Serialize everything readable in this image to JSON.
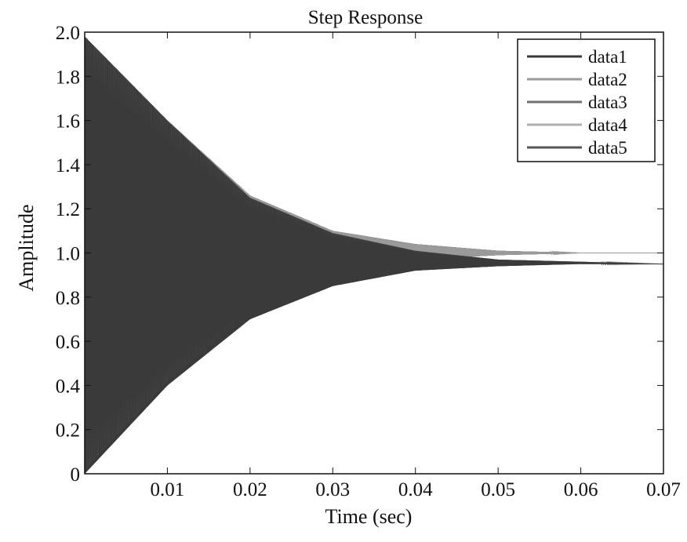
{
  "chart_data": {
    "type": "line",
    "title": "Step Response",
    "xlabel": "Time (sec)",
    "ylabel": "Amplitude",
    "xlim": [
      0,
      0.07
    ],
    "ylim": [
      0,
      2.0
    ],
    "x_ticks": [
      0.01,
      0.02,
      0.03,
      0.04,
      0.05,
      0.06,
      0.07
    ],
    "x_tick_labels": [
      "0.01",
      "0.02",
      "0.03",
      "0.04",
      "0.05",
      "0.06",
      "0.07"
    ],
    "y_ticks": [
      0,
      0.2,
      0.4,
      0.6,
      0.8,
      1.0,
      1.2,
      1.4,
      1.6,
      1.8,
      2.0
    ],
    "y_tick_labels": [
      "0",
      "0.2",
      "0.4",
      "0.6",
      "0.8",
      "1.0",
      "1.2",
      "1.4",
      "1.6",
      "1.8",
      "2.0"
    ],
    "grid": false,
    "legend_position": "top-right",
    "series": [
      {
        "name": "data1",
        "color": "#3a3a3a",
        "final_value": 0.95,
        "x": [
          0,
          0.01,
          0.02,
          0.03,
          0.04,
          0.05,
          0.06,
          0.07
        ],
        "y_upper": [
          1.98,
          1.6,
          1.25,
          1.09,
          1.01,
          0.97,
          0.96,
          0.95
        ],
        "y_lower": [
          0.0,
          0.4,
          0.7,
          0.85,
          0.92,
          0.94,
          0.95,
          0.95
        ]
      },
      {
        "name": "data2",
        "color": "#9a9a9a",
        "final_value": 1.0,
        "x": [
          0,
          0.01,
          0.02,
          0.03,
          0.04,
          0.05,
          0.06,
          0.07
        ],
        "y_upper": [
          1.98,
          1.6,
          1.26,
          1.1,
          1.04,
          1.01,
          1.0,
          1.0
        ],
        "y_lower": [
          0.02,
          0.42,
          0.74,
          0.9,
          0.97,
          0.99,
          1.0,
          1.0
        ]
      },
      {
        "name": "data3",
        "color": "#707070",
        "final_value": 1.0,
        "x": [
          0,
          0.01,
          0.02,
          0.03,
          0.04,
          0.05,
          0.06,
          0.07
        ],
        "y_upper": [
          1.98,
          1.6,
          1.26,
          1.1,
          1.04,
          1.01,
          1.0,
          1.0
        ],
        "y_lower": [
          0.02,
          0.42,
          0.74,
          0.9,
          0.97,
          0.99,
          1.0,
          1.0
        ]
      },
      {
        "name": "data4",
        "color": "#b0b0b0",
        "final_value": 1.0,
        "x": [
          0,
          0.01,
          0.02,
          0.03,
          0.04,
          0.05,
          0.06,
          0.07
        ],
        "y_upper": [
          1.98,
          1.6,
          1.26,
          1.1,
          1.04,
          1.01,
          1.0,
          1.0
        ],
        "y_lower": [
          0.02,
          0.42,
          0.74,
          0.9,
          0.97,
          0.99,
          1.0,
          1.0
        ]
      },
      {
        "name": "data5",
        "color": "#555555",
        "final_value": 1.0,
        "x": [
          0,
          0.01,
          0.02,
          0.03,
          0.04,
          0.05,
          0.06,
          0.07
        ],
        "y_upper": [
          1.98,
          1.6,
          1.26,
          1.1,
          1.04,
          1.01,
          1.0,
          1.0
        ],
        "y_lower": [
          0.02,
          0.42,
          0.74,
          0.9,
          0.97,
          0.99,
          1.0,
          1.0
        ]
      }
    ]
  }
}
